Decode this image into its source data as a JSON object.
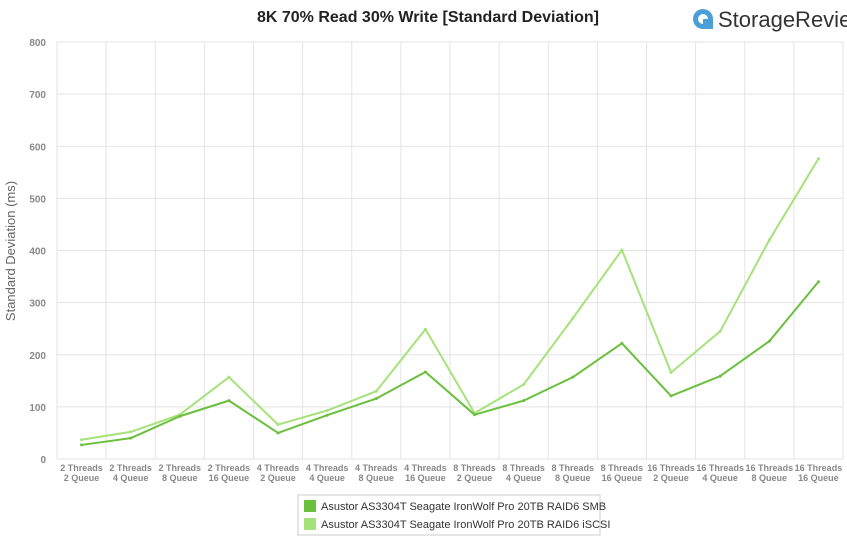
{
  "brand": {
    "name": "StorageReview"
  },
  "chart_data": {
    "type": "line",
    "title": "8K 70% Read 30% Write [Standard Deviation]",
    "ylabel": "Standard Deviation (ms)",
    "xlabel": "",
    "ylim": [
      0,
      800
    ],
    "yticks": [
      0,
      100,
      200,
      300,
      400,
      500,
      600,
      700,
      800
    ],
    "grid": true,
    "legend_position": "bottom",
    "categories": [
      [
        "2 Threads",
        "2 Queue"
      ],
      [
        "2 Threads",
        "4 Queue"
      ],
      [
        "2 Threads",
        "8 Queue"
      ],
      [
        "2 Threads",
        "16 Queue"
      ],
      [
        "4 Threads",
        "2 Queue"
      ],
      [
        "4 Threads",
        "4 Queue"
      ],
      [
        "4 Threads",
        "8 Queue"
      ],
      [
        "4 Threads",
        "16 Queue"
      ],
      [
        "8 Threads",
        "2 Queue"
      ],
      [
        "8 Threads",
        "4 Queue"
      ],
      [
        "8 Threads",
        "8 Queue"
      ],
      [
        "8 Threads",
        "16 Queue"
      ],
      [
        "16 Threads",
        "2 Queue"
      ],
      [
        "16 Threads",
        "4 Queue"
      ],
      [
        "16 Threads",
        "8 Queue"
      ],
      [
        "16 Threads",
        "16 Queue"
      ]
    ],
    "series": [
      {
        "name": "Asustor AS3304T Seagate IronWolf Pro 20TB RAID6 SMB",
        "color": "#6abf3c",
        "values": [
          27,
          40,
          82,
          112,
          50,
          84,
          116,
          167,
          85,
          112,
          157,
          222,
          121,
          159,
          226,
          340
        ]
      },
      {
        "name": "Asustor AS3304T Seagate IronWolf Pro 20TB RAID6 iSCSI",
        "color": "#a6e27a",
        "values": [
          37,
          52,
          85,
          157,
          66,
          93,
          130,
          249,
          88,
          143,
          270,
          401,
          166,
          245,
          420,
          576
        ]
      }
    ]
  }
}
